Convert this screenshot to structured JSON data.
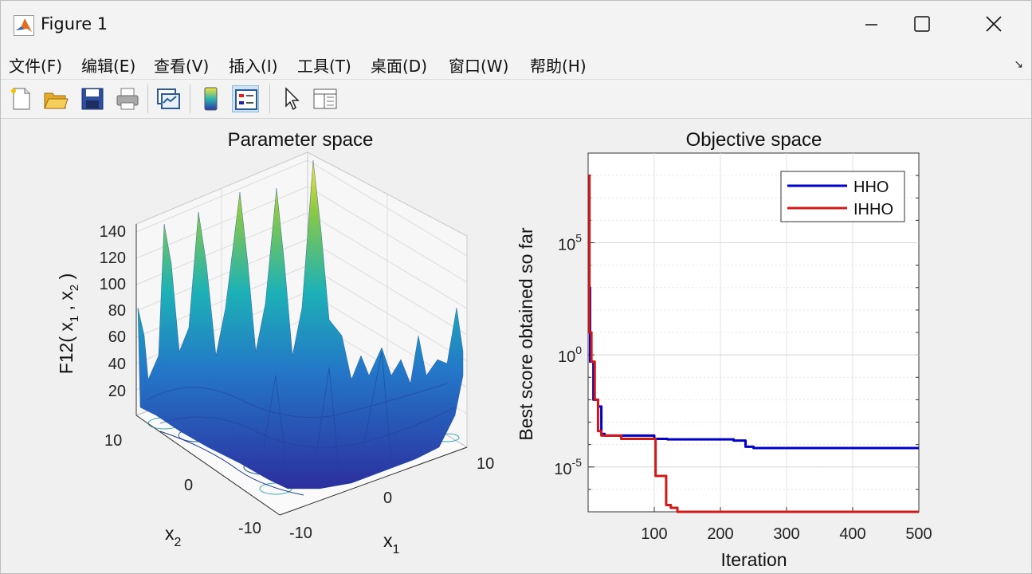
{
  "window": {
    "title": "Figure 1"
  },
  "menu": [
    {
      "label": "文件(F)"
    },
    {
      "label": "编辑(E)"
    },
    {
      "label": "查看(V)"
    },
    {
      "label": "插入(I)"
    },
    {
      "label": "工具(T)"
    },
    {
      "label": "桌面(D)"
    },
    {
      "label": "窗口(W)"
    },
    {
      "label": "帮助(H)"
    }
  ],
  "toolbar": {
    "icons": [
      "new-figure-icon",
      "open-file-icon",
      "save-icon",
      "print-icon",
      "link-plot-icon",
      "insert-colorbar-icon",
      "insert-legend-icon",
      "edit-plot-icon",
      "property-inspector-icon"
    ]
  },
  "left_plot": {
    "title": "Parameter space",
    "zlabel": "F12( x",
    "zlabel_sub1": "1",
    "zlabel_mid": " , x",
    "zlabel_sub2": "2",
    "zlabel_end": " )",
    "zticks": [
      "140",
      "120",
      "100",
      "80",
      "60",
      "40",
      "20"
    ],
    "x1_label": "x",
    "x1_sub": "1",
    "x2_label": "x",
    "x2_sub": "2",
    "x1_ticks": [
      "-10",
      "0",
      "10"
    ],
    "x2_ticks": [
      "10",
      "0",
      "-10"
    ]
  },
  "chart_data": {
    "type": "line",
    "title": "Objective space",
    "xlabel": "Iteration",
    "ylabel": "Best score obtained so far",
    "xlim": [
      0,
      500
    ],
    "yscale": "log",
    "ylim_exponent": [
      -7,
      9
    ],
    "xticks": [
      "100",
      "200",
      "300",
      "400",
      "500"
    ],
    "ytick_base": "10",
    "ytick_exps": [
      "5",
      "0",
      "-5"
    ],
    "grid": true,
    "legend_position": "top-right",
    "series": [
      {
        "name": "HHO",
        "color": "#0000c8",
        "points": [
          [
            1,
            1000
          ],
          [
            3,
            0.5
          ],
          [
            8,
            0.01
          ],
          [
            15,
            0.005
          ],
          [
            20,
            0.0003
          ],
          [
            25,
            0.00025
          ],
          [
            30,
            0.00025
          ],
          [
            100,
            0.00018
          ],
          [
            120,
            0.00017
          ],
          [
            200,
            0.00017
          ],
          [
            220,
            0.00015
          ],
          [
            230,
            0.00015
          ],
          [
            238,
            8e-05
          ],
          [
            250,
            7e-05
          ],
          [
            400,
            7e-05
          ],
          [
            500,
            7e-05
          ]
        ]
      },
      {
        "name": "IHHO",
        "color": "#d21919",
        "points": [
          [
            1,
            100000000
          ],
          [
            2,
            10
          ],
          [
            5,
            0.5
          ],
          [
            10,
            0.01
          ],
          [
            15,
            0.0004
          ],
          [
            20,
            0.00025
          ],
          [
            50,
            0.00018
          ],
          [
            100,
            0.00018
          ],
          [
            102,
            4e-06
          ],
          [
            115,
            4e-06
          ],
          [
            118,
            2e-07
          ],
          [
            125,
            1.5e-07
          ],
          [
            135,
            1e-07
          ],
          [
            200,
            1e-07
          ],
          [
            500,
            1e-07
          ]
        ]
      }
    ]
  }
}
